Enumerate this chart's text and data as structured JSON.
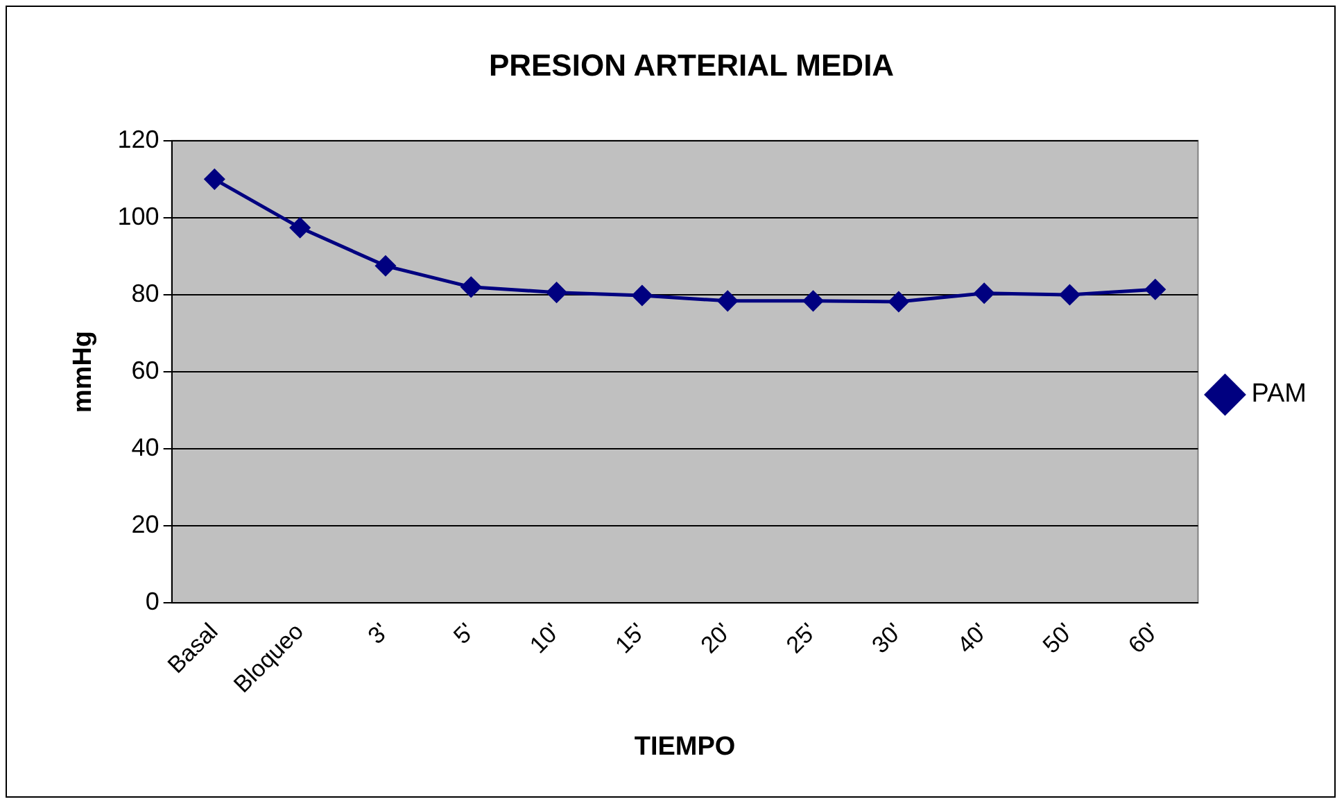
{
  "chart_data": {
    "type": "line",
    "title": "PRESION ARTERIAL MEDIA",
    "xlabel": "TIEMPO",
    "ylabel": "mmHg",
    "categories": [
      "Basal",
      "Bloqueo",
      "3'",
      "5'",
      "10'",
      "15'",
      "20'",
      "25'",
      "30'",
      "40'",
      "50'",
      "60'"
    ],
    "series": [
      {
        "name": "PAM",
        "color": "#000080",
        "values": [
          110,
          97.4,
          87.5,
          82,
          80.6,
          79.8,
          78.4,
          78.4,
          78.2,
          80.4,
          80,
          81.4
        ]
      }
    ],
    "ylim": [
      0,
      120
    ],
    "yticks": [
      0,
      20,
      40,
      60,
      80,
      100,
      120
    ],
    "grid": "y",
    "legend": "right",
    "marker": "diamond",
    "line_style": "solid"
  }
}
